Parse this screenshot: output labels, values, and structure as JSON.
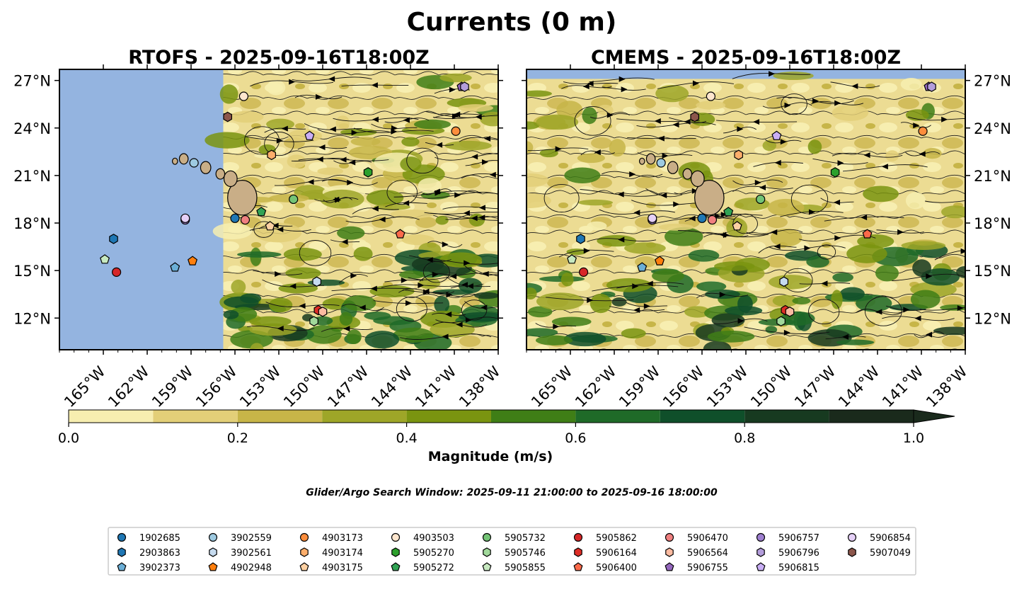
{
  "figure_title": "Currents (0 m)",
  "search_window": "Glider/Argo Search Window: 2025-09-11 21:00:00 to 2025-09-16 18:00:00",
  "colors": {
    "ocean_land": "#94b4e0",
    "hawaii_land": "#c9ae87",
    "colormap": [
      "#f7eeb0",
      "#e3cf78",
      "#c7b548",
      "#9ea628",
      "#7a9410",
      "#3f7e16",
      "#1f6a28",
      "#0f4f2a",
      "#173a20",
      "#1a2a1c"
    ]
  },
  "chart_data": {
    "type": "map-contour",
    "lon_range": [
      -168,
      -138
    ],
    "lat_range": [
      10,
      27.7
    ],
    "lon_ticks": [
      "165°W",
      "162°W",
      "159°W",
      "156°W",
      "153°W",
      "150°W",
      "147°W",
      "144°W",
      "141°W",
      "138°W"
    ],
    "lat_ticks": [
      "27°N",
      "24°N",
      "21°N",
      "18°N",
      "15°N",
      "12°N"
    ],
    "lon_tick_values": [
      -165,
      -162,
      -159,
      -156,
      -153,
      -150,
      -147,
      -144,
      -141,
      -138
    ],
    "lat_tick_values": [
      27,
      24,
      21,
      18,
      15,
      12
    ],
    "panels": [
      {
        "title": "RTOFS - 2025-09-16T18:00Z",
        "model": "RTOFS",
        "data_west_edge_lon": -156.8
      },
      {
        "title": "CMEMS - 2025-09-16T18:00Z",
        "model": "CMEMS",
        "data_north_edge_lat": 27.1
      }
    ],
    "colorbar": {
      "label": "Magnitude (m/s)",
      "levels": [
        0,
        0.1,
        0.2,
        0.3,
        0.4,
        0.5,
        0.6,
        0.7,
        0.8,
        0.9,
        1.0
      ],
      "tick_labels": [
        "0.0",
        "0.2",
        "0.4",
        "0.6",
        "0.8",
        "1.0"
      ],
      "extend": "max"
    },
    "platforms": [
      {
        "id": "1902685",
        "lon": -156.0,
        "lat": 18.3,
        "color": "#1f77b4",
        "marker": "circle"
      },
      {
        "id": "2903863",
        "lon": -164.3,
        "lat": 17.0,
        "color": "#1f77b4",
        "marker": "hexagon"
      },
      {
        "id": "3902373",
        "lon": -160.1,
        "lat": 15.2,
        "color": "#6baed6",
        "marker": "pentagon"
      },
      {
        "id": "3902559",
        "lon": -158.8,
        "lat": 21.8,
        "color": "#9ecae1",
        "marker": "circle"
      },
      {
        "id": "3902561",
        "lon": -150.4,
        "lat": 14.3,
        "color": "#c6dbef",
        "marker": "hexagon"
      },
      {
        "id": "4902948",
        "lon": -158.9,
        "lat": 15.6,
        "color": "#ff7f0e",
        "marker": "pentagon"
      },
      {
        "id": "4903173",
        "lon": -140.9,
        "lat": 23.8,
        "color": "#fd8d3c",
        "marker": "circle"
      },
      {
        "id": "4903174",
        "lon": -153.5,
        "lat": 22.3,
        "color": "#fdae6b",
        "marker": "hexagon"
      },
      {
        "id": "4903175",
        "lon": -153.6,
        "lat": 17.8,
        "color": "#fdd0a2",
        "marker": "pentagon"
      },
      {
        "id": "4903503",
        "lon": -155.4,
        "lat": 26.0,
        "color": "#fee6ce",
        "marker": "circle"
      },
      {
        "id": "5905270",
        "lon": -146.9,
        "lat": 21.2,
        "color": "#2ca02c",
        "marker": "hexagon"
      },
      {
        "id": "5905272",
        "lon": -154.2,
        "lat": 18.7,
        "color": "#31a354",
        "marker": "pentagon"
      },
      {
        "id": "5905732",
        "lon": -152.0,
        "lat": 19.5,
        "color": "#74c476",
        "marker": "circle"
      },
      {
        "id": "5905746",
        "lon": -150.6,
        "lat": 11.8,
        "color": "#a1d99b",
        "marker": "hexagon"
      },
      {
        "id": "5905855",
        "lon": -164.9,
        "lat": 15.7,
        "color": "#c7e9c0",
        "marker": "pentagon"
      },
      {
        "id": "5905862",
        "lon": -164.1,
        "lat": 14.9,
        "color": "#d62728",
        "marker": "circle"
      },
      {
        "id": "5906164",
        "lon": -150.3,
        "lat": 12.5,
        "color": "#de2d26",
        "marker": "hexagon"
      },
      {
        "id": "5906400",
        "lon": -144.7,
        "lat": 17.3,
        "color": "#fb6a4a",
        "marker": "pentagon"
      },
      {
        "id": "5906470",
        "lon": -155.3,
        "lat": 18.2,
        "color": "#f08080",
        "marker": "circle"
      },
      {
        "id": "5906564",
        "lon": -150.0,
        "lat": 12.4,
        "color": "#fcbba1",
        "marker": "hexagon"
      },
      {
        "id": "5906755",
        "lon": -140.5,
        "lat": 26.6,
        "color": "#9467bd",
        "marker": "pentagon"
      },
      {
        "id": "5906757",
        "lon": -159.4,
        "lat": 18.2,
        "color": "#9e7fd0",
        "marker": "circle"
      },
      {
        "id": "5906796",
        "lon": -140.3,
        "lat": 26.6,
        "color": "#b39ddb",
        "marker": "hexagon"
      },
      {
        "id": "5906815",
        "lon": -150.9,
        "lat": 23.5,
        "color": "#c9aef5",
        "marker": "pentagon"
      },
      {
        "id": "5906854",
        "lon": -159.4,
        "lat": 18.3,
        "color": "#e5d0f7",
        "marker": "circle"
      },
      {
        "id": "5907049",
        "lon": -156.5,
        "lat": 24.7,
        "color": "#8c564b",
        "marker": "hexagon"
      }
    ]
  }
}
